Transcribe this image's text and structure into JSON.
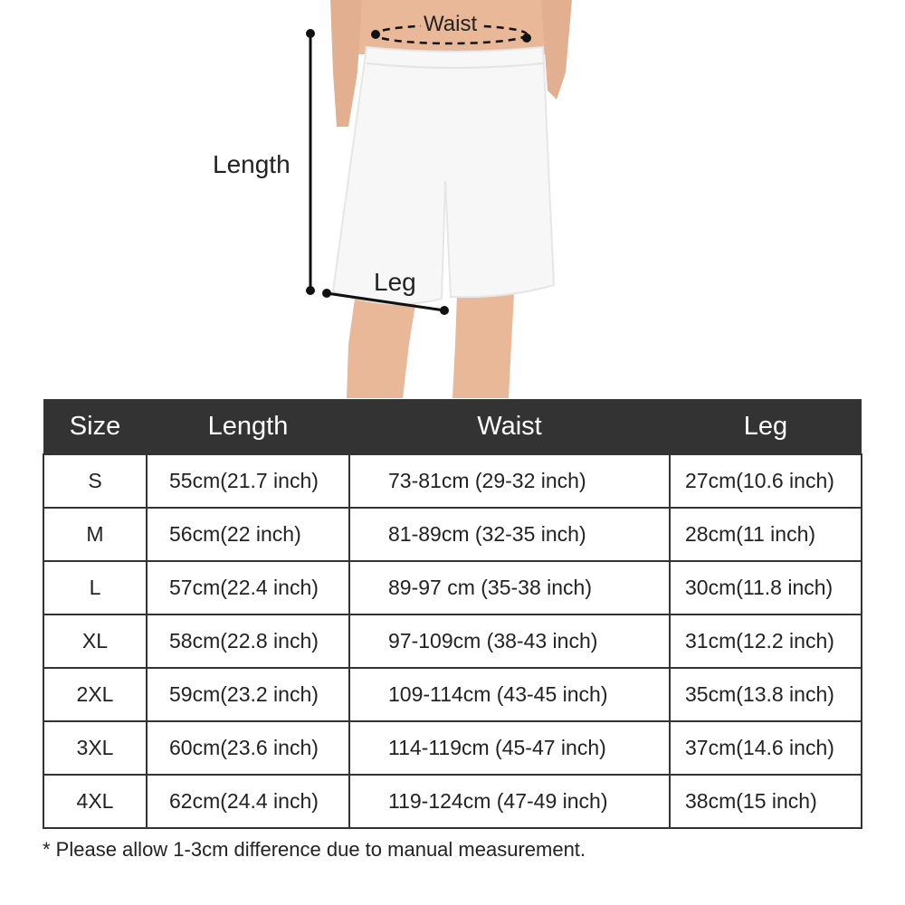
{
  "figure": {
    "labels": {
      "waist": "Waist",
      "length": "Length",
      "leg": "Leg"
    },
    "colors": {
      "skin": "#e8b898",
      "shorts": "#f7f7f7",
      "annotation": "#111111"
    }
  },
  "table": {
    "header_bg": "#333333",
    "headers": [
      "Size",
      "Length",
      "Waist",
      "Leg"
    ],
    "rows": [
      {
        "size": "S",
        "length": "55cm(21.7 inch)",
        "waist": "73-81cm (29-32 inch)",
        "leg": "27cm(10.6 inch)"
      },
      {
        "size": "M",
        "length": "56cm(22 inch)",
        "waist": "81-89cm (32-35 inch)",
        "leg": "28cm(11 inch)"
      },
      {
        "size": "L",
        "length": "57cm(22.4 inch)",
        "waist": "89-97 cm (35-38 inch)",
        "leg": "30cm(11.8 inch)"
      },
      {
        "size": "XL",
        "length": "58cm(22.8 inch)",
        "waist": "97-109cm (38-43 inch)",
        "leg": "31cm(12.2 inch)"
      },
      {
        "size": "2XL",
        "length": "59cm(23.2 inch)",
        "waist": "109-114cm (43-45 inch)",
        "leg": "35cm(13.8 inch)"
      },
      {
        "size": "3XL",
        "length": "60cm(23.6 inch)",
        "waist": "114-119cm (45-47 inch)",
        "leg": "37cm(14.6 inch)"
      },
      {
        "size": "4XL",
        "length": "62cm(24.4 inch)",
        "waist": "119-124cm (47-49 inch)",
        "leg": "38cm(15 inch)"
      }
    ]
  },
  "note": "* Please allow 1-3cm difference due to manual measurement."
}
